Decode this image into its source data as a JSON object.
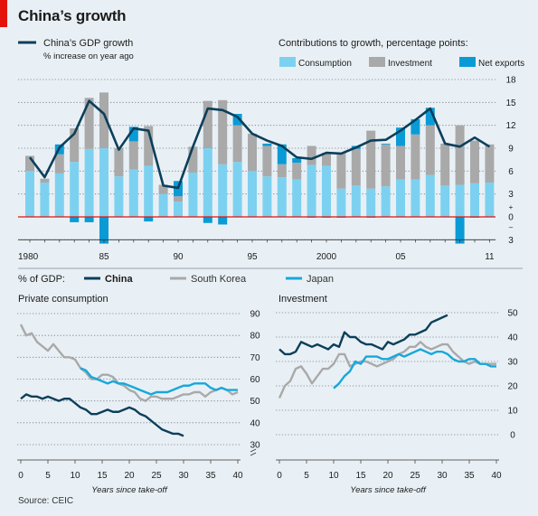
{
  "title": "China’s growth",
  "source": "Source: CEIC",
  "colors": {
    "china": "#0c3f5a",
    "consumption": "#7dd1f0",
    "investment": "#a9a9a9",
    "net_exports": "#0a9bd6",
    "south_korea": "#a9a9a9",
    "japan": "#17a8db",
    "zero_line": "#e3120b"
  },
  "chart_data": [
    {
      "type": "bar",
      "id": "top",
      "legend_line": "China’s GDP growth",
      "legend_line_sub": "% increase on year ago",
      "legend_title": "Contributions to growth, percentage points:",
      "series_names": [
        "Consumption",
        "Investment",
        "Net exports"
      ],
      "ylim": [
        -3,
        18
      ],
      "y_ticks": [
        "18",
        "15",
        "12",
        "9",
        "6",
        "3",
        "0"
      ],
      "y_ticks_neg": [
        "3"
      ],
      "x_ticks": [
        "1980",
        "85",
        "90",
        "95",
        "2000",
        "05",
        "11"
      ],
      "years": [
        1980,
        1981,
        1982,
        1983,
        1984,
        1985,
        1986,
        1987,
        1988,
        1989,
        1990,
        1991,
        1992,
        1993,
        1994,
        1995,
        1996,
        1997,
        1998,
        1999,
        2000,
        2001,
        2002,
        2003,
        2004,
        2005,
        2006,
        2007,
        2008,
        2009,
        2010,
        2011
      ],
      "consumption": [
        6.0,
        4.5,
        5.7,
        7.2,
        8.9,
        9.0,
        5.3,
        6.2,
        6.7,
        3.0,
        2.0,
        5.8,
        9.0,
        6.9,
        7.2,
        6.0,
        5.3,
        5.2,
        4.9,
        6.8,
        6.7,
        3.7,
        4.1,
        3.7,
        4.0,
        4.9,
        4.9,
        5.5,
        4.1,
        4.2,
        4.4,
        4.5
      ],
      "investment": [
        2.0,
        0.5,
        2.5,
        4.4,
        6.7,
        7.3,
        3.7,
        3.7,
        5.2,
        1.2,
        0.7,
        3.4,
        6.2,
        8.4,
        4.8,
        4.9,
        4.0,
        1.7,
        2.2,
        2.5,
        1.7,
        4.7,
        4.8,
        7.6,
        5.5,
        4.4,
        5.9,
        6.5,
        5.5,
        7.8,
        5.6,
        5.0
      ],
      "net_exports": [
        0.0,
        0.0,
        1.3,
        -0.7,
        -0.7,
        -3.5,
        0.0,
        1.9,
        -0.6,
        0.0,
        2.0,
        0.0,
        -0.8,
        -1.0,
        1.5,
        0.0,
        0.3,
        2.6,
        0.6,
        -0.1,
        -0.1,
        -0.1,
        0.4,
        -0.1,
        0.1,
        2.4,
        2.0,
        2.3,
        0.0,
        -3.5,
        -0.1,
        0.0
      ],
      "gdp_growth": [
        7.8,
        5.2,
        9.1,
        10.9,
        15.2,
        13.5,
        8.8,
        11.6,
        11.3,
        4.1,
        3.8,
        9.2,
        14.2,
        14.0,
        13.1,
        10.9,
        10.0,
        9.3,
        7.8,
        7.6,
        8.4,
        8.3,
        9.1,
        10.0,
        10.1,
        11.3,
        12.7,
        14.2,
        9.6,
        9.2,
        10.4,
        9.2
      ]
    },
    {
      "type": "line",
      "id": "consumption_panel",
      "heading": "% of GDP:",
      "subtitle": "Private consumption",
      "xlabel": "Years since take-off",
      "ylim": [
        30,
        90
      ],
      "xlim": [
        0,
        40
      ],
      "y_ticks": [
        "90",
        "80",
        "70",
        "60",
        "50",
        "40",
        "30"
      ],
      "x_ticks": [
        "0",
        "5",
        "10",
        "15",
        "20",
        "25",
        "30",
        "35",
        "40"
      ],
      "series": [
        {
          "name": "China",
          "x": [
            0,
            1,
            2,
            3,
            4,
            5,
            6,
            7,
            8,
            9,
            10,
            11,
            12,
            13,
            14,
            15,
            16,
            17,
            18,
            19,
            20,
            21,
            22,
            23,
            24,
            25,
            26,
            27,
            28,
            29,
            30
          ],
          "y": [
            51,
            53,
            52,
            52,
            51,
            52,
            51,
            50,
            51,
            51,
            49,
            47,
            46,
            44,
            44,
            45,
            46,
            45,
            45,
            46,
            47,
            46,
            44,
            43,
            41,
            39,
            37,
            36,
            35,
            35,
            34
          ]
        },
        {
          "name": "South Korea",
          "x": [
            0,
            1,
            2,
            3,
            4,
            5,
            6,
            7,
            8,
            9,
            10,
            11,
            12,
            13,
            14,
            15,
            16,
            17,
            18,
            19,
            20,
            21,
            22,
            23,
            24,
            25,
            26,
            27,
            28,
            29,
            30,
            31,
            32,
            33,
            34,
            35,
            36,
            37,
            38,
            39,
            40
          ],
          "y": [
            85,
            80,
            81,
            77,
            75,
            73,
            76,
            73,
            70,
            70,
            69,
            65,
            63,
            60,
            60,
            62,
            62,
            61,
            58,
            57,
            55,
            54,
            51,
            50,
            52,
            52,
            51,
            51,
            51,
            52,
            53,
            53,
            54,
            54,
            52,
            54,
            55,
            56,
            55,
            53,
            54
          ]
        },
        {
          "name": "Japan",
          "x": [
            11,
            12,
            13,
            14,
            15,
            16,
            17,
            18,
            19,
            20,
            21,
            22,
            23,
            24,
            25,
            26,
            27,
            28,
            29,
            30,
            31,
            32,
            33,
            34,
            35,
            36,
            37,
            38,
            39,
            40
          ],
          "y": [
            65,
            64,
            61,
            60,
            59,
            58,
            59,
            58,
            58,
            57,
            56,
            55,
            54,
            53,
            54,
            54,
            54,
            55,
            56,
            57,
            57,
            58,
            58,
            58,
            56,
            55,
            56,
            55,
            55,
            55
          ]
        }
      ]
    },
    {
      "type": "line",
      "id": "investment_panel",
      "subtitle": "Investment",
      "xlabel": "Years since take-off",
      "ylim": [
        0,
        50
      ],
      "xlim": [
        0,
        40
      ],
      "y_ticks": [
        "50",
        "40",
        "30",
        "20",
        "10",
        "0"
      ],
      "x_ticks": [
        "0",
        "5",
        "10",
        "15",
        "20",
        "25",
        "30",
        "35",
        "40"
      ],
      "series": [
        {
          "name": "China",
          "x": [
            0,
            1,
            2,
            3,
            4,
            5,
            6,
            7,
            8,
            9,
            10,
            11,
            12,
            13,
            14,
            15,
            16,
            17,
            18,
            19,
            20,
            21,
            22,
            23,
            24,
            25,
            26,
            27,
            28,
            29,
            30,
            31
          ],
          "y": [
            35,
            33,
            33,
            34,
            38,
            37,
            36,
            37,
            36,
            35,
            37,
            36,
            42,
            40,
            40,
            38,
            37,
            37,
            36,
            35,
            38,
            37,
            38,
            39,
            41,
            41,
            42,
            43,
            46,
            47,
            48,
            49
          ]
        },
        {
          "name": "South Korea",
          "x": [
            0,
            1,
            2,
            3,
            4,
            5,
            6,
            7,
            8,
            9,
            10,
            11,
            12,
            13,
            14,
            15,
            16,
            17,
            18,
            19,
            20,
            21,
            22,
            23,
            24,
            25,
            26,
            27,
            28,
            29,
            30,
            31,
            32,
            33,
            34,
            35,
            36,
            37,
            38,
            39,
            40
          ],
          "y": [
            15,
            20,
            22,
            27,
            28,
            25,
            21,
            24,
            27,
            27,
            29,
            33,
            33,
            28,
            29,
            30,
            30,
            29,
            28,
            29,
            30,
            31,
            33,
            34,
            36,
            36,
            38,
            36,
            35,
            36,
            37,
            37,
            34,
            32,
            30,
            29,
            30,
            29,
            29,
            29,
            29
          ]
        },
        {
          "name": "Japan",
          "x": [
            10,
            11,
            12,
            13,
            14,
            15,
            16,
            17,
            18,
            19,
            20,
            21,
            22,
            23,
            24,
            25,
            26,
            27,
            28,
            29,
            30,
            31,
            32,
            33,
            34,
            35,
            36,
            37,
            38,
            39,
            40
          ],
          "y": [
            19,
            21,
            24,
            26,
            30,
            29,
            32,
            32,
            32,
            31,
            31,
            32,
            33,
            32,
            33,
            34,
            35,
            34,
            33,
            34,
            34,
            33,
            31,
            30,
            30,
            31,
            31,
            29,
            29,
            28,
            28
          ]
        }
      ]
    }
  ]
}
